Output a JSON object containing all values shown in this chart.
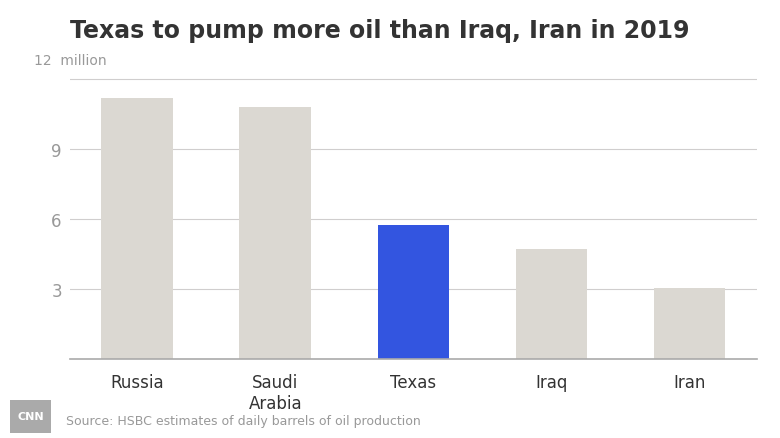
{
  "title": "Texas to pump more oil than Iraq, Iran in 2019",
  "categories": [
    "Russia",
    "Saudi\nArabia",
    "Texas",
    "Iraq",
    "Iran"
  ],
  "values": [
    11.2,
    10.8,
    5.75,
    4.7,
    3.05
  ],
  "bar_colors": [
    "#dbd8d2",
    "#dbd8d2",
    "#3355e0",
    "#dbd8d2",
    "#dbd8d2"
  ],
  "ylim": [
    0,
    13.0
  ],
  "yticks": [
    3,
    6,
    9,
    12
  ],
  "ylabel_top": "12  million",
  "source": "Source: HSBC estimates of daily barrels of oil production",
  "bg_color": "#ffffff",
  "title_fontsize": 17,
  "tick_fontsize": 12,
  "source_fontsize": 9,
  "grid_color": "#d0cece",
  "axis_color": "#888888",
  "text_color": "#333333",
  "label_color": "#999999"
}
